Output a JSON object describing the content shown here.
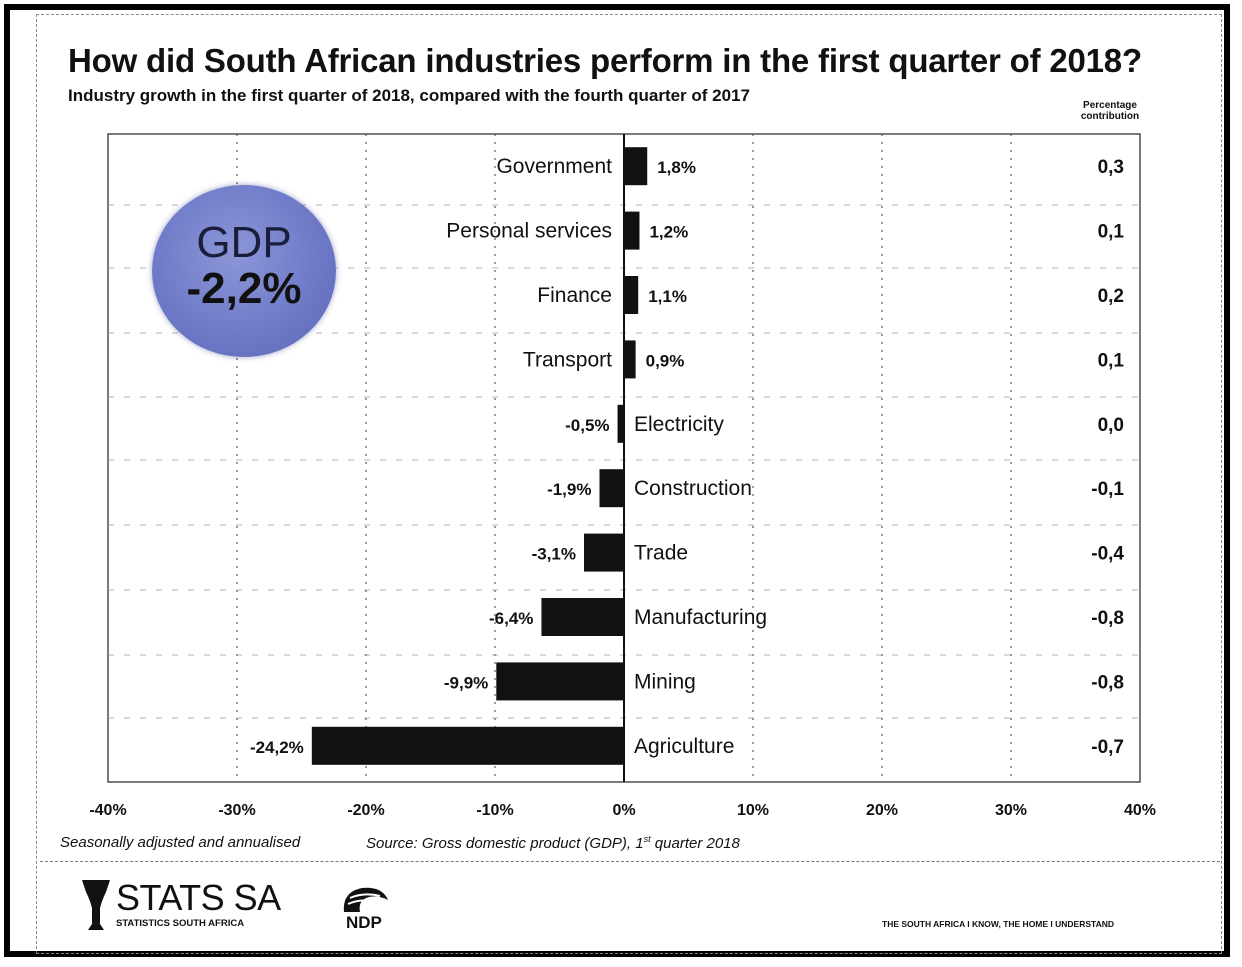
{
  "title": "How did South African industries perform in the first quarter of 2018?",
  "subtitle": "Industry growth in the first quarter of 2018, compared with the fourth quarter of 2017",
  "contribution_header": [
    "Percentage",
    "contribution"
  ],
  "gdp_badge": {
    "label": "GDP",
    "value": "-2,2%"
  },
  "footnote_left": "Seasonally adjusted and annualised",
  "footnote_source": "Source: Gross domestic product (GDP), 1",
  "footnote_source_sup": "st",
  "footnote_source_end": " quarter 2018",
  "logos": {
    "stats_name": "STATS SA",
    "stats_tagline": "STATISTICS SOUTH AFRICA",
    "ndp_text": "NDP",
    "stats_icon": "stats-sa-emblem-icon",
    "ndp_icon": "ndp-logo-icon"
  },
  "slogan": "THE SOUTH AFRICA I KNOW, THE HOME I UNDERSTAND",
  "colors": {
    "bar": "#111111",
    "badge": "#6f7bc8",
    "grid": "#555555"
  },
  "chart_data": {
    "type": "bar",
    "orientation": "horizontal",
    "categories": [
      "Government",
      "Personal services",
      "Finance",
      "Transport",
      "Electricity",
      "Construction",
      "Trade",
      "Manufacturing",
      "Mining",
      "Agriculture"
    ],
    "values": [
      1.8,
      1.2,
      1.1,
      0.9,
      -0.5,
      -1.9,
      -3.1,
      -6.4,
      -9.9,
      -24.2
    ],
    "value_labels": [
      "1,8%",
      "1,2%",
      "1,1%",
      "0,9%",
      "-0,5%",
      "-1,9%",
      "-3,1%",
      "-6,4%",
      "-9,9%",
      "-24,2%"
    ],
    "contribution_labels": [
      "0,3",
      "0,1",
      "0,2",
      "0,1",
      "0,0",
      "-0,1",
      "-0,4",
      "-0,8",
      "-0,8",
      "-0,7"
    ],
    "contribution": [
      0.3,
      0.1,
      0.2,
      0.1,
      0.0,
      -0.1,
      -0.4,
      -0.8,
      -0.8,
      -0.7
    ],
    "xlim": [
      -40,
      40
    ],
    "xticks": [
      -40,
      -30,
      -20,
      -10,
      0,
      10,
      20,
      30,
      40
    ],
    "xtick_labels": [
      "-40%",
      "-30%",
      "-20%",
      "-10%",
      "0%",
      "10%",
      "20%",
      "30%",
      "40%"
    ],
    "grid": true,
    "grid_style": "dotted vertical"
  }
}
